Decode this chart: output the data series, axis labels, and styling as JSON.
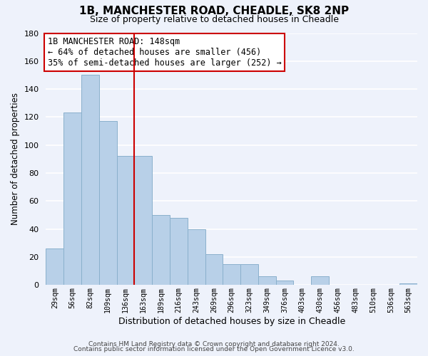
{
  "title": "1B, MANCHESTER ROAD, CHEADLE, SK8 2NP",
  "subtitle": "Size of property relative to detached houses in Cheadle",
  "xlabel": "Distribution of detached houses by size in Cheadle",
  "ylabel": "Number of detached properties",
  "bar_labels": [
    "29sqm",
    "56sqm",
    "82sqm",
    "109sqm",
    "136sqm",
    "163sqm",
    "189sqm",
    "216sqm",
    "243sqm",
    "269sqm",
    "296sqm",
    "323sqm",
    "349sqm",
    "376sqm",
    "403sqm",
    "430sqm",
    "456sqm",
    "483sqm",
    "510sqm",
    "536sqm",
    "563sqm"
  ],
  "bar_values": [
    26,
    123,
    150,
    117,
    92,
    92,
    50,
    48,
    40,
    22,
    15,
    15,
    6,
    3,
    0,
    6,
    0,
    0,
    0,
    0,
    1
  ],
  "bar_color": "#b8d0e8",
  "bar_edge_color": "#8ab0cc",
  "vline_x": 4.5,
  "vline_color": "#cc0000",
  "annotation_title": "1B MANCHESTER ROAD: 148sqm",
  "annotation_line1": "← 64% of detached houses are smaller (456)",
  "annotation_line2": "35% of semi-detached houses are larger (252) →",
  "annotation_box_color": "#ffffff",
  "annotation_box_edge": "#cc0000",
  "ylim": [
    0,
    180
  ],
  "yticks": [
    0,
    20,
    40,
    60,
    80,
    100,
    120,
    140,
    160,
    180
  ],
  "footer1": "Contains HM Land Registry data © Crown copyright and database right 2024.",
  "footer2": "Contains public sector information licensed under the Open Government Licence v3.0.",
  "bg_color": "#eef2fb",
  "grid_color": "#ffffff",
  "title_fontsize": 11,
  "subtitle_fontsize": 9,
  "ylabel_fontsize": 8.5,
  "xlabel_fontsize": 9
}
